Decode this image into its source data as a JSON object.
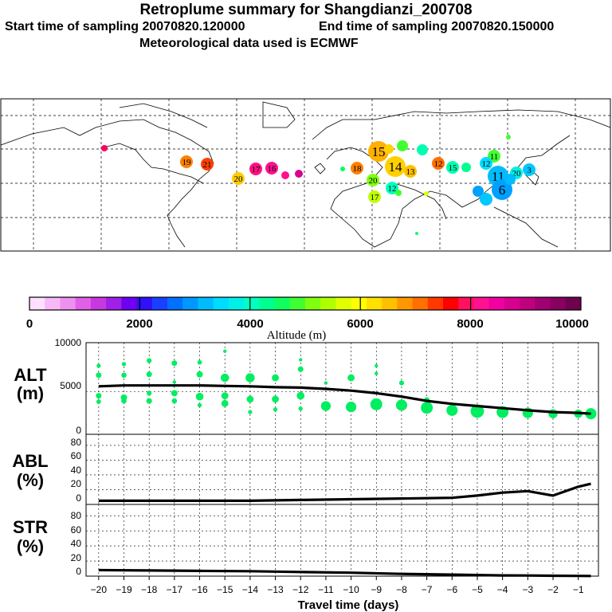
{
  "header": {
    "title": "Retroplume summary for Shangdianzi_200708",
    "start_time": "Start time of sampling 20070820.120000",
    "end_time": "End time of sampling 20070820.150000",
    "met_data": "Meteorological data used is ECMWF"
  },
  "colors": {
    "trace": "#00ee60",
    "line": "#000000",
    "colorbar": [
      "#ffe0ff",
      "#f7b8f7",
      "#ee90ee",
      "#e060e6",
      "#c838e0",
      "#a020e8",
      "#7000f0",
      "#3010f8",
      "#1a40ff",
      "#0070ff",
      "#0098ff",
      "#00bcff",
      "#00dcff",
      "#00f0e8",
      "#00ffc0",
      "#00ff90",
      "#10ff60",
      "#40ff30",
      "#80ff10",
      "#b0ff00",
      "#e0ff00",
      "#ffff00",
      "#ffe000",
      "#ffc000",
      "#ff9800",
      "#ff7000",
      "#ff3800",
      "#ff0000",
      "#ff1060",
      "#ff1090",
      "#f000a0",
      "#d80090",
      "#c00080",
      "#a00070",
      "#880060",
      "#700050"
    ]
  },
  "colorbar": {
    "axis_label": "Altitude (m)",
    "ticks": [
      "0",
      "2000",
      "4000",
      "6000",
      "8000",
      "10000"
    ]
  },
  "map_markers": [
    {
      "label": "19",
      "color": "#ff8000",
      "big": false
    },
    {
      "label": "21",
      "color": "#ff4000",
      "big": false
    },
    {
      "label": "20",
      "color": "#ffcc00",
      "big": false
    },
    {
      "label": "17",
      "color": "#ff1080",
      "big": false
    },
    {
      "label": "16",
      "color": "#ff1090",
      "big": false
    },
    {
      "label": "15",
      "color": "#ffb000",
      "big": true
    },
    {
      "label": "14",
      "color": "#ffd000",
      "big": true
    },
    {
      "label": "13",
      "color": "#ffc000",
      "big": false
    },
    {
      "label": "12",
      "color": "#ff7000",
      "big": false
    },
    {
      "label": "11",
      "color": "#40ff30",
      "big": false
    },
    {
      "label": "15",
      "color": "#00ffb0",
      "big": false
    },
    {
      "label": "12",
      "color": "#00dcff",
      "big": false
    },
    {
      "label": "11",
      "color": "#00bcff",
      "big": true
    },
    {
      "label": "20",
      "color": "#00f0e8",
      "big": false
    },
    {
      "label": "3",
      "color": "#00c8ff",
      "big": false
    },
    {
      "label": "6",
      "color": "#00a0ff",
      "big": true
    },
    {
      "label": "18",
      "color": "#ff8000",
      "big": false
    },
    {
      "label": "20",
      "color": "#80ff10",
      "big": false
    },
    {
      "label": "12",
      "color": "#00ffc0",
      "big": false
    },
    {
      "label": "17",
      "color": "#c0ff00",
      "big": false
    }
  ],
  "chart_data": [
    {
      "type": "line",
      "panel": "ALT",
      "ylabel": "ALT",
      "yunit": "(m)",
      "ylim": [
        0,
        10000
      ],
      "y_ticks": [
        "10000",
        "5000",
        "0"
      ],
      "x": [
        -20,
        -19,
        -18,
        -17,
        -16,
        -15,
        -14,
        -13,
        -12,
        -11,
        -10,
        -9,
        -8,
        -7,
        -6,
        -5,
        -4,
        -3,
        -2,
        -1,
        -0.5
      ],
      "median": [
        5600,
        5700,
        5700,
        5700,
        5700,
        5650,
        5600,
        5500,
        5450,
        5300,
        5100,
        4800,
        4400,
        3900,
        3550,
        3300,
        3050,
        2800,
        2600,
        2500,
        2400
      ],
      "scatter": [
        {
          "x": -20,
          "y": 8000,
          "s": 1.2
        },
        {
          "x": -20,
          "y": 6900,
          "s": 1.6
        },
        {
          "x": -20,
          "y": 4500,
          "s": 1.6
        },
        {
          "x": -20,
          "y": 3800,
          "s": 1.3
        },
        {
          "x": -19,
          "y": 8200,
          "s": 1.2
        },
        {
          "x": -19,
          "y": 6900,
          "s": 1.5
        },
        {
          "x": -19,
          "y": 4300,
          "s": 1.8
        },
        {
          "x": -19,
          "y": 3900,
          "s": 1.5
        },
        {
          "x": -18,
          "y": 8600,
          "s": 1.4
        },
        {
          "x": -18,
          "y": 7000,
          "s": 1.6
        },
        {
          "x": -18,
          "y": 4800,
          "s": 1.4
        },
        {
          "x": -18,
          "y": 3900,
          "s": 1.6
        },
        {
          "x": -17,
          "y": 8300,
          "s": 1.6
        },
        {
          "x": -17,
          "y": 6100,
          "s": 1.0
        },
        {
          "x": -17,
          "y": 4800,
          "s": 1.8
        },
        {
          "x": -17,
          "y": 3900,
          "s": 1.5
        },
        {
          "x": -16,
          "y": 8400,
          "s": 1.3
        },
        {
          "x": -16,
          "y": 7000,
          "s": 1.8
        },
        {
          "x": -16,
          "y": 4400,
          "s": 2.2
        },
        {
          "x": -16,
          "y": 3400,
          "s": 1.2
        },
        {
          "x": -15,
          "y": 9700,
          "s": 1.0
        },
        {
          "x": -15,
          "y": 6600,
          "s": 2.4
        },
        {
          "x": -15,
          "y": 4500,
          "s": 2.0
        },
        {
          "x": -15,
          "y": 3600,
          "s": 2.0
        },
        {
          "x": -14,
          "y": 6600,
          "s": 2.6
        },
        {
          "x": -14,
          "y": 4100,
          "s": 2.0
        },
        {
          "x": -14,
          "y": 2600,
          "s": 1.2
        },
        {
          "x": -13,
          "y": 6600,
          "s": 2.0
        },
        {
          "x": -13,
          "y": 4100,
          "s": 2.0
        },
        {
          "x": -13,
          "y": 2900,
          "s": 1.2
        },
        {
          "x": -12,
          "y": 8700,
          "s": 1.0
        },
        {
          "x": -12,
          "y": 7600,
          "s": 1.6
        },
        {
          "x": -12,
          "y": 4500,
          "s": 2.2
        },
        {
          "x": -12,
          "y": 3000,
          "s": 1.2
        },
        {
          "x": -11,
          "y": 6000,
          "s": 1.0
        },
        {
          "x": -11,
          "y": 3300,
          "s": 2.8
        },
        {
          "x": -10,
          "y": 6600,
          "s": 2.0
        },
        {
          "x": -10,
          "y": 3200,
          "s": 3.0
        },
        {
          "x": -9,
          "y": 8000,
          "s": 1.0
        },
        {
          "x": -9,
          "y": 7100,
          "s": 1.0
        },
        {
          "x": -9,
          "y": 3500,
          "s": 3.4
        },
        {
          "x": -8,
          "y": 6000,
          "s": 1.4
        },
        {
          "x": -8,
          "y": 3400,
          "s": 3.2
        },
        {
          "x": -7,
          "y": 4000,
          "s": 1.6
        },
        {
          "x": -7,
          "y": 3100,
          "s": 3.4
        },
        {
          "x": -6,
          "y": 2800,
          "s": 3.2
        },
        {
          "x": -5,
          "y": 2700,
          "s": 3.8
        },
        {
          "x": -4,
          "y": 2600,
          "s": 3.4
        },
        {
          "x": -3,
          "y": 2500,
          "s": 3.0
        },
        {
          "x": -2,
          "y": 2400,
          "s": 2.6
        },
        {
          "x": -1,
          "y": 2400,
          "s": 2.4
        },
        {
          "x": -0.5,
          "y": 2400,
          "s": 3.2
        }
      ]
    },
    {
      "type": "line",
      "panel": "ABL",
      "ylabel": "ABL",
      "yunit": "(%)",
      "ylim": [
        0,
        90
      ],
      "y_ticks": [
        "80",
        "60",
        "40",
        "20",
        "0"
      ],
      "x": [
        -20,
        -18,
        -16,
        -14,
        -12,
        -10,
        -8,
        -6,
        -5,
        -4,
        -3,
        -2,
        -1,
        -0.5
      ],
      "values": [
        5,
        5,
        5,
        5,
        6,
        7,
        8,
        9,
        12,
        16,
        18,
        12,
        24,
        28
      ]
    },
    {
      "type": "line",
      "panel": "STR",
      "ylabel": "STR",
      "yunit": "(%)",
      "ylim": [
        0,
        90
      ],
      "y_ticks": [
        "80",
        "60",
        "40",
        "20",
        "0"
      ],
      "x": [
        -20,
        -18,
        -16,
        -14,
        -12,
        -10,
        -8,
        -6,
        -5,
        -4,
        -3,
        -2,
        -1,
        -0.5
      ],
      "values": [
        8,
        7.5,
        7,
        6.5,
        5.5,
        4.5,
        3,
        2,
        1.5,
        1,
        0.8,
        0.5,
        0.3,
        0.2
      ]
    }
  ],
  "xaxis": {
    "title": "Travel time (days)",
    "ticks": [
      "−20",
      "−19",
      "−18",
      "−17",
      "−16",
      "−15",
      "−14",
      "−13",
      "−12",
      "−11",
      "−10",
      "−9",
      "−8",
      "−7",
      "−6",
      "−5",
      "−4",
      "−3",
      "−2",
      "−1"
    ]
  }
}
